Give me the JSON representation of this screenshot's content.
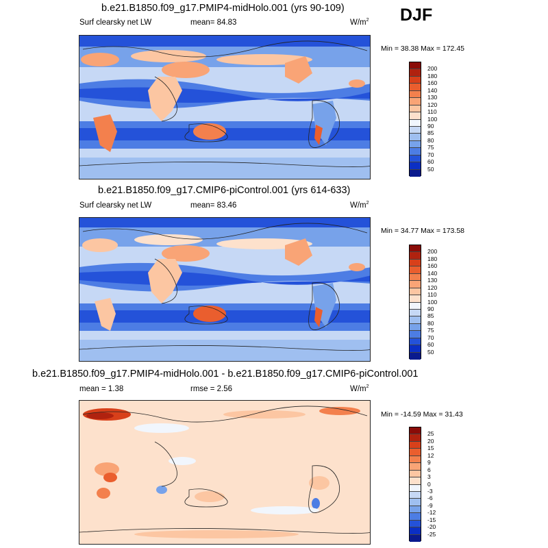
{
  "season": "DJF",
  "units": "W/m",
  "units_sup": "2",
  "panels": [
    {
      "title": "b.e21.B1850.f09_g17.PMIP4-midHolo.001 (yrs 90-109)",
      "left_label": "Surf clearsky net LW",
      "center_label": "mean=  84.83",
      "min_max": "Min =  38.38 Max = 172.45"
    },
    {
      "title": "b.e21.B1850.f09_g17.CMIP6-piControl.001 (yrs 614-633)",
      "left_label": "Surf clearsky net LW",
      "center_label": "mean=  83.46",
      "min_max": "Min =  34.77 Max = 173.58"
    },
    {
      "title": "b.e21.B1850.f09_g17.PMIP4-midHolo.001 - b.e21.B1850.f09_g17.CMIP6-piControl.001",
      "left_label": "mean =   1.38",
      "center_label": "rmse =   2.56",
      "min_max": "Min = -14.59 Max =  31.43"
    }
  ],
  "colorbars": {
    "absolute": {
      "labels": [
        "200",
        "180",
        "160",
        "140",
        "130",
        "120",
        "110",
        "100",
        "90",
        "85",
        "80",
        "75",
        "70",
        "60",
        "50"
      ],
      "colors": [
        "#8a0c08",
        "#b0220f",
        "#d8401a",
        "#ea5e2e",
        "#f3804d",
        "#f9a476",
        "#fcc6a2",
        "#fde1cc",
        "#f1f6fd",
        "#c6d8f5",
        "#9fbff0",
        "#77a2ea",
        "#4d7de4",
        "#2452d9",
        "#0b2fc4",
        "#0a1a8e"
      ]
    },
    "difference": {
      "labels": [
        "25",
        "20",
        "15",
        "12",
        "9",
        "6",
        "3",
        "0",
        "-3",
        "-6",
        "-9",
        "-12",
        "-15",
        "-20",
        "-25"
      ],
      "colors": [
        "#8a0c08",
        "#b0220f",
        "#d8401a",
        "#ea5e2e",
        "#f3804d",
        "#f9a476",
        "#fcc6a2",
        "#fde1cc",
        "#f1f6fd",
        "#c6d8f5",
        "#9fbff0",
        "#77a2ea",
        "#4d7de4",
        "#2452d9",
        "#0b2fc4",
        "#0a1a8e"
      ]
    }
  }
}
